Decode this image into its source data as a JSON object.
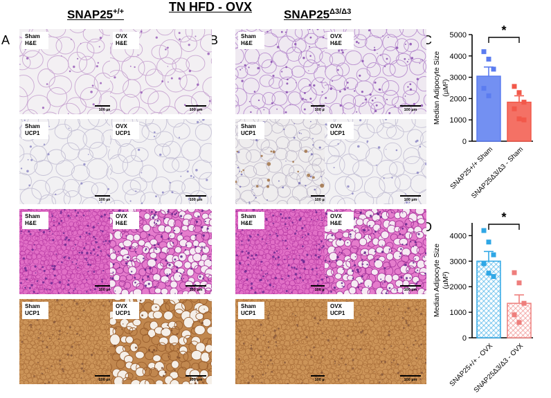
{
  "figure": {
    "title": "TN HFD - OVX",
    "genotype_left": {
      "base": "SNAP25",
      "sup": "+/+"
    },
    "genotype_right": {
      "base": "SNAP25",
      "sup": "Δ3/Δ3"
    },
    "panel_letters": [
      "A",
      "B",
      "C",
      "D"
    ],
    "scale_bar_label": "100 µm"
  },
  "tiles": [
    {
      "label": "Sham\nH&E",
      "stain": "he_white"
    },
    {
      "label": "OVX\nH&E",
      "stain": "he_white"
    },
    {
      "label": "Sham\nH&E",
      "stain": "he_white_dense"
    },
    {
      "label": "OVX\nH&E",
      "stain": "he_white_dense"
    },
    {
      "label": "Sham\nUCP1",
      "stain": "ucp1_white"
    },
    {
      "label": "OVX\nUCP1",
      "stain": "ucp1_white"
    },
    {
      "label": "Sham\nUCP1",
      "stain": "ucp1_white_brown"
    },
    {
      "label": "OVX\nUCP1",
      "stain": "ucp1_white"
    },
    {
      "label": "Sham\nH&E",
      "stain": "he_brown"
    },
    {
      "label": "OVX\nH&E",
      "stain": "he_brown_lipid"
    },
    {
      "label": "Sham\nH&E",
      "stain": "he_brown"
    },
    {
      "label": "OVX\nH&E",
      "stain": "he_brown_lipid"
    },
    {
      "label": "Sham\nUCP1",
      "stain": "ucp1_brown"
    },
    {
      "label": "OVX\nUCP1",
      "stain": "ucp1_brown_lipid"
    },
    {
      "label": "Sham\nUCP1",
      "stain": "ucp1_brown"
    },
    {
      "label": "OVX\nUCP1",
      "stain": "ucp1_brown"
    }
  ],
  "chart_data": [
    {
      "panel": "C",
      "type": "bar",
      "categories": [
        "SNAP25+/+ Sham",
        "SNAP25Δ3/Δ3 - Sham"
      ],
      "values": [
        3050,
        1830
      ],
      "errors": [
        430,
        300
      ],
      "points": [
        [
          4200,
          3850,
          3380,
          2480,
          2130
        ],
        [
          2570,
          2280,
          1830,
          1520,
          1050,
          1000
        ]
      ],
      "ylabel": "Median Adipocyte Size",
      "yunit": "(µM²)",
      "ylim": [
        0,
        5000
      ],
      "yticks": [
        0,
        1000,
        2000,
        3000,
        4000,
        5000
      ],
      "significance": "*",
      "colors": [
        "#5b7cf0",
        "#f2584a"
      ]
    },
    {
      "panel": "D",
      "type": "bar",
      "categories": [
        "SNAP25+/+ - OVX",
        "SNAP25Δ3/Δ3 - OVX"
      ],
      "values": [
        3000,
        1350
      ],
      "errors": [
        380,
        330
      ],
      "points": [
        [
          4200,
          3750,
          3250,
          2900,
          2530,
          2400
        ],
        [
          2550,
          2150,
          1350,
          900,
          600
        ]
      ],
      "ylabel": "Median Adipocyte Size",
      "yunit": "(µM²)",
      "ylim": [
        0,
        4500
      ],
      "yticks": [
        0,
        1000,
        2000,
        3000,
        4000
      ],
      "significance": "*",
      "colors": [
        "#2fa7e6",
        "#ee7e7c"
      ]
    }
  ]
}
